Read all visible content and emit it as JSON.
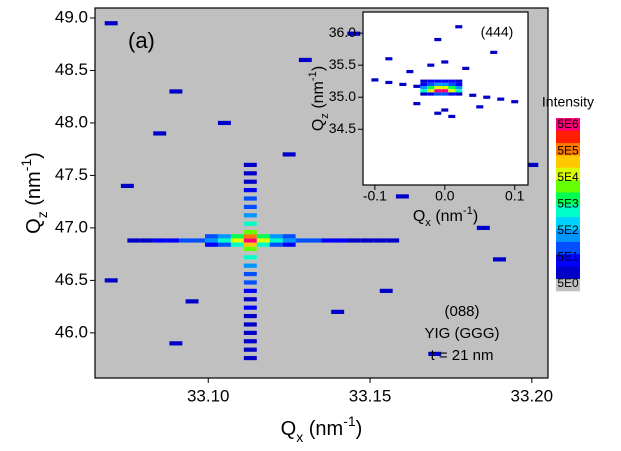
{
  "chart_data": [
    {
      "type": "heatmap",
      "panel": "(a)",
      "annotations": [
        "(088)",
        "YIG (GGG)",
        "t = 21 nm"
      ],
      "xlabel": [
        "Q",
        "x",
        " (nm",
        "-1",
        ")"
      ],
      "ylabel": [
        "Q",
        "z",
        " (nm",
        "-1",
        ")"
      ],
      "xlim": [
        33.065,
        33.205
      ],
      "ylim": [
        45.57,
        49.095
      ],
      "xticks": [
        {
          "value": 33.1,
          "label": "33.10"
        },
        33.15,
        {
          "value": 33.2,
          "label": "33.20"
        }
      ],
      "yticks": [
        {
          "value": 46,
          "label": "46.0"
        },
        46.5,
        {
          "value": 47,
          "label": "47.0"
        },
        47.5,
        {
          "value": 48,
          "label": "48.0"
        },
        48.5,
        {
          "value": 49,
          "label": "49.0"
        }
      ],
      "background": "#c0c0c0",
      "dx": 0.004,
      "dy": 0.04,
      "x": [
        33.077,
        33.081,
        33.085,
        33.089,
        33.093,
        33.097,
        33.101,
        33.105,
        33.109,
        33.113,
        33.117,
        33.121,
        33.125,
        33.129,
        33.133,
        33.137,
        33.141,
        33.145,
        33.149,
        33.153,
        33.157,
        33.101,
        33.105,
        33.109,
        33.113,
        33.117,
        33.121,
        33.125,
        33.101,
        33.105,
        33.109,
        33.113,
        33.117,
        33.121,
        33.125,
        33.113,
        33.113,
        33.113,
        33.113,
        33.113,
        33.113,
        33.113,
        33.113,
        33.113,
        33.113,
        33.113,
        33.113,
        33.113,
        33.113,
        33.113,
        33.113,
        33.113,
        33.113,
        33.113,
        33.113,
        33.113,
        33.113,
        33.113,
        33.07,
        33.09,
        33.13,
        33.18,
        33.2,
        33.085,
        33.16,
        33.14,
        33.07,
        33.19,
        33.09,
        33.17,
        33.145,
        33.105,
        33.125,
        33.195,
        33.075,
        33.155,
        33.185,
        33.095
      ],
      "y": [
        46.88,
        46.88,
        46.88,
        46.88,
        46.88,
        46.88,
        46.88,
        46.88,
        46.88,
        46.88,
        46.88,
        46.88,
        46.88,
        46.88,
        46.88,
        46.88,
        46.88,
        46.88,
        46.88,
        46.88,
        46.88,
        46.92,
        46.92,
        46.92,
        46.92,
        46.92,
        46.92,
        46.92,
        46.84,
        46.84,
        46.84,
        46.84,
        46.84,
        46.84,
        46.84,
        45.76,
        45.84,
        45.92,
        46.0,
        46.08,
        46.16,
        46.24,
        46.32,
        46.4,
        46.48,
        46.56,
        46.64,
        46.72,
        46.8,
        46.96,
        47.04,
        47.12,
        47.2,
        47.28,
        47.36,
        47.44,
        47.52,
        47.6,
        48.95,
        48.3,
        48.6,
        48.1,
        47.6,
        47.9,
        47.3,
        46.2,
        46.5,
        46.7,
        45.9,
        45.8,
        48.85,
        48.0,
        47.7,
        48.75,
        47.4,
        46.4,
        47.0,
        46.3
      ],
      "values": [
        20,
        30,
        50,
        50,
        100,
        200,
        500,
        2000,
        50000,
        5000000,
        50000,
        2000,
        500,
        200,
        100,
        50,
        50,
        30,
        20,
        20,
        20,
        100,
        500,
        5000,
        500000,
        5000,
        500,
        100,
        50,
        200,
        2000,
        200000,
        2000,
        200,
        50,
        20,
        20,
        30,
        30,
        20,
        30,
        50,
        30,
        50,
        100,
        200,
        500,
        2000,
        20000,
        20000,
        2000,
        500,
        200,
        100,
        50,
        30,
        20,
        20,
        20,
        20,
        30,
        20,
        20,
        20,
        30,
        20,
        20,
        20,
        20,
        20,
        20,
        30,
        20,
        20,
        20,
        20,
        20,
        20
      ],
      "colorbar": {
        "title": "Intensity",
        "log": true,
        "ticks": [
          {
            "value": 5,
            "label": "5E0"
          },
          {
            "value": 50,
            "label": "5E1"
          },
          {
            "value": 500,
            "label": "5E2"
          },
          {
            "value": 5000,
            "label": "5E3"
          },
          {
            "value": 50000,
            "label": "5E4"
          },
          {
            "value": 500000,
            "label": "5E5"
          },
          {
            "value": 5000000,
            "label": "5E6"
          }
        ],
        "colors": [
          "#c0c0c0",
          "#0000c8",
          "#0000ff",
          "#0050ff",
          "#0096ff",
          "#00d2ff",
          "#00ffc8",
          "#00ff50",
          "#64ff00",
          "#dcff00",
          "#ffc800",
          "#ff7800",
          "#ff1e00",
          "#ff0078"
        ]
      }
    },
    {
      "type": "heatmap",
      "panel": "(444)",
      "xlabel": [
        "Q",
        "x",
        " (nm",
        "-1",
        ")"
      ],
      "ylabel": [
        "Q",
        "z",
        " (nm",
        "-1",
        ")"
      ],
      "xlim": [
        -0.117,
        0.119
      ],
      "ylim": [
        33.63,
        36.33
      ],
      "xticks": [
        -0.1,
        {
          "value": 0,
          "label": "0.0"
        },
        0.1
      ],
      "yticks": [
        34.5,
        {
          "value": 35,
          "label": "35.0"
        },
        35.5,
        {
          "value": 36,
          "label": "36.0"
        }
      ],
      "background": "#ffffff",
      "dx": 0.01,
      "dy": 0.05,
      "x": [
        -0.03,
        -0.02,
        -0.01,
        0,
        0.01,
        0.02,
        -0.03,
        -0.02,
        -0.01,
        0,
        0.01,
        0.02,
        -0.03,
        -0.02,
        -0.01,
        0,
        0.01,
        0.02,
        -0.03,
        -0.02,
        -0.01,
        0,
        0.01,
        0.02,
        -0.03,
        -0.02,
        -0.01,
        0,
        0.01,
        0.02,
        -0.1,
        -0.08,
        -0.06,
        -0.04,
        0.04,
        0.06,
        0.08,
        0.1,
        0,
        -0.01,
        0.01,
        -0.02,
        0,
        -0.05,
        0.05,
        -0.04,
        0.03,
        -0.01,
        0.02,
        -0.08,
        0.07
      ],
      "y": [
        35.25,
        35.25,
        35.25,
        35.25,
        35.25,
        35.25,
        35.2,
        35.2,
        35.2,
        35.2,
        35.2,
        35.2,
        35.15,
        35.15,
        35.15,
        35.15,
        35.15,
        35.15,
        35.1,
        35.1,
        35.1,
        35.1,
        35.1,
        35.1,
        35.05,
        35.05,
        35.05,
        35.05,
        35.05,
        35.05,
        35.27,
        35.23,
        35.2,
        35.17,
        35.03,
        35.0,
        34.97,
        34.93,
        34.8,
        34.75,
        34.7,
        35.5,
        35.55,
        35.4,
        34.85,
        34.9,
        35.45,
        35.9,
        36.1,
        35.6,
        35.7
      ],
      "values": [
        20,
        50,
        50,
        50,
        50,
        20,
        50,
        200,
        500,
        500,
        200,
        50,
        500,
        5000,
        50000,
        50000,
        5000,
        500,
        2000,
        50000,
        5000000,
        5000000,
        50000,
        2000,
        20,
        50,
        100,
        100,
        50,
        20,
        20,
        20,
        20,
        20,
        20,
        20,
        20,
        20,
        20,
        20,
        20,
        20,
        20,
        20,
        20,
        20,
        20,
        20,
        20,
        20,
        20
      ]
    }
  ]
}
